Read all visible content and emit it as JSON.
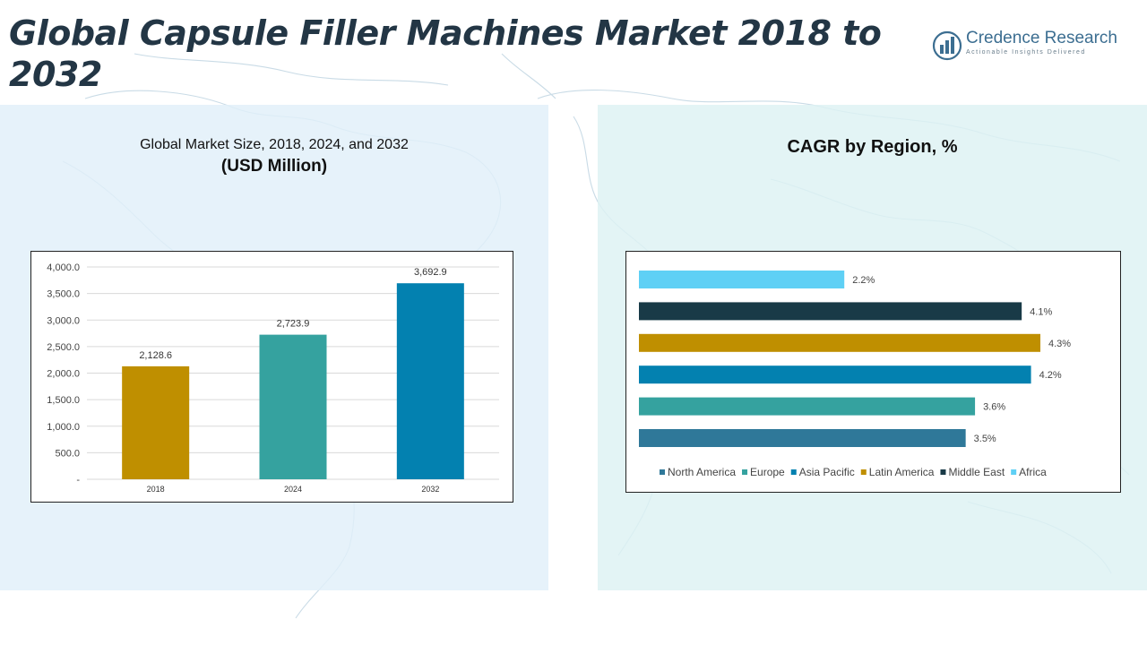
{
  "page": {
    "title": "Global Capsule Filler Machines Market 2018 to 2032"
  },
  "logo": {
    "name": "Credence Research",
    "tagline": "Actionable Insights Delivered",
    "icon": "bar-chart-globe-icon",
    "color": "#3c6e91"
  },
  "left_panel": {
    "title_line1": "Global Market Size, 2018, 2024, and 2032",
    "title_line2": "(USD Million)"
  },
  "right_panel": {
    "title": "CAGR by Region, %"
  },
  "chart_data": [
    {
      "type": "bar",
      "title": "Global Market Size, 2018, 2024, and 2032 (USD Million)",
      "categories": [
        "2018",
        "2024",
        "2032"
      ],
      "values": [
        2128.6,
        2723.9,
        3692.9
      ],
      "value_labels": [
        "2,128.6",
        "2,723.9",
        "3,692.9"
      ],
      "colors": [
        "#bf8f00",
        "#35a29f",
        "#0381b0"
      ],
      "ylim": [
        0,
        4000
      ],
      "yticks": [
        0,
        500,
        1000,
        1500,
        2000,
        2500,
        3000,
        3500,
        4000
      ],
      "ytick_labels": [
        "-",
        "500.0",
        "1,000.0",
        "1,500.0",
        "2,000.0",
        "2,500.0",
        "3,000.0",
        "3,500.0",
        "4,000.0"
      ],
      "grid": true,
      "xlabel": "",
      "ylabel": ""
    },
    {
      "type": "bar",
      "orientation": "horizontal",
      "title": "CAGR by Region, %",
      "categories": [
        "North America",
        "Europe",
        "Asia Pacific",
        "Latin America",
        "Middle East",
        "Africa"
      ],
      "values": [
        3.5,
        3.6,
        4.2,
        4.3,
        4.1,
        2.2
      ],
      "value_labels": [
        "3.5%",
        "3.6%",
        "4.2%",
        "4.3%",
        "4.1%",
        "2.2%"
      ],
      "colors": [
        "#2f7899",
        "#35a29f",
        "#0381b0",
        "#bf8f00",
        "#193a47",
        "#5fd0f5"
      ],
      "xlim": [
        0,
        4.5
      ],
      "legend": "bottom",
      "grid": false
    }
  ]
}
